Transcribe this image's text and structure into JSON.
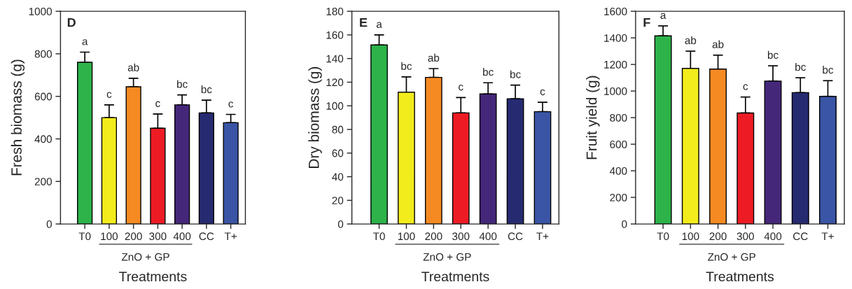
{
  "chart_data": [
    {
      "type": "bar",
      "xlabel": "Treatments",
      "ylabel": "Fresh biomass (g)",
      "categories": [
        "T0",
        "100",
        "200",
        "300",
        "400",
        "CC",
        "T+"
      ],
      "values": [
        760,
        500,
        645,
        450,
        560,
        522,
        476
      ],
      "colors": [
        "#2db34a",
        "#f2ec1c",
        "#f58a22",
        "#ed1c24",
        "#45277a",
        "#262a70",
        "#3a55a5"
      ],
      "errors": [
        [
          760,
          808
        ],
        [
          500,
          560
        ],
        [
          645,
          685
        ],
        [
          450,
          517
        ],
        [
          560,
          607
        ],
        [
          522,
          582
        ],
        [
          476,
          515
        ]
      ],
      "ylim": [
        0,
        1000
      ],
      "yticks": [
        0,
        200,
        400,
        600,
        800,
        1000
      ],
      "grid": false,
      "annotations": [
        "D",
        "ZnO + GP",
        {
          "text": "a",
          "x": "T0",
          "y": 808
        },
        {
          "text": "c",
          "x": "100",
          "y": 560
        },
        {
          "text": "ab",
          "x": "200",
          "y": 685
        },
        {
          "text": "c",
          "x": "300",
          "y": 517
        },
        {
          "text": "bc",
          "x": "400",
          "y": 607
        },
        {
          "text": "bc",
          "x": "CC",
          "y": 582
        },
        {
          "text": "c",
          "x": "T+",
          "y": 515
        }
      ]
    },
    {
      "type": "bar",
      "xlabel": "Treatments",
      "ylabel": "Dry biomass (g)",
      "categories": [
        "T0",
        "100",
        "200",
        "300",
        "400",
        "CC",
        "T+"
      ],
      "values": [
        151.5,
        111.5,
        124,
        94,
        110,
        106,
        95
      ],
      "colors": [
        "#2db34a",
        "#f2ec1c",
        "#f58a22",
        "#ed1c24",
        "#45277a",
        "#262a70",
        "#3a55a5"
      ],
      "errors": [
        [
          151.5,
          160
        ],
        [
          111.5,
          124.5
        ],
        [
          124,
          131.5
        ],
        [
          94,
          107
        ],
        [
          110,
          119.5
        ],
        [
          106,
          117.5
        ],
        [
          95,
          103
        ]
      ],
      "ylim": [
        0,
        180
      ],
      "yticks": [
        0,
        20,
        40,
        60,
        80,
        100,
        120,
        140,
        160,
        180
      ],
      "grid": false,
      "annotations": [
        "E",
        "ZnO + GP",
        {
          "text": "a",
          "x": "T0",
          "y": 160
        },
        {
          "text": "bc",
          "x": "100",
          "y": 124.5
        },
        {
          "text": "ab",
          "x": "200",
          "y": 131.5
        },
        {
          "text": "c",
          "x": "300",
          "y": 107
        },
        {
          "text": "bc",
          "x": "400",
          "y": 119.5
        },
        {
          "text": "bc",
          "x": "CC",
          "y": 117.5
        },
        {
          "text": "c",
          "x": "T+",
          "y": 103
        }
      ]
    },
    {
      "type": "bar",
      "xlabel": "Treatments",
      "ylabel": "Fruit yield (g)",
      "categories": [
        "T0",
        "100",
        "200",
        "300",
        "400",
        "CC",
        "T+"
      ],
      "values": [
        1415,
        1170,
        1165,
        835,
        1075,
        988,
        960
      ],
      "colors": [
        "#2db34a",
        "#f2ec1c",
        "#f58a22",
        "#ed1c24",
        "#45277a",
        "#262a70",
        "#3a55a5"
      ],
      "errors": [
        [
          1415,
          1490
        ],
        [
          1170,
          1300
        ],
        [
          1165,
          1270
        ],
        [
          835,
          955
        ],
        [
          1075,
          1190
        ],
        [
          988,
          1100
        ],
        [
          960,
          1078
        ]
      ],
      "ylim": [
        0,
        1600
      ],
      "yticks": [
        0,
        200,
        400,
        600,
        800,
        1000,
        1200,
        1400,
        1600
      ],
      "grid": false,
      "annotations": [
        "F",
        "ZnO + GP",
        {
          "text": "a",
          "x": "T0",
          "y": 1490
        },
        {
          "text": "ab",
          "x": "100",
          "y": 1300
        },
        {
          "text": "ab",
          "x": "200",
          "y": 1270
        },
        {
          "text": "c",
          "x": "300",
          "y": 955
        },
        {
          "text": "bc",
          "x": "400",
          "y": 1190
        },
        {
          "text": "bc",
          "x": "CC",
          "y": 1100
        },
        {
          "text": "bc",
          "x": "T+",
          "y": 1078
        }
      ]
    }
  ]
}
